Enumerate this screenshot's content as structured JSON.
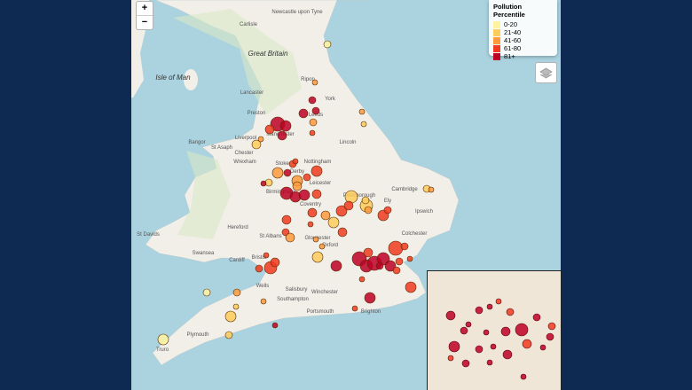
{
  "legend": {
    "title": "Pollution Percentile",
    "items": [
      {
        "label": "0-20",
        "color": "#fff3a0"
      },
      {
        "label": "21-40",
        "color": "#fecc5c"
      },
      {
        "label": "41-60",
        "color": "#fd9a3c"
      },
      {
        "label": "61-80",
        "color": "#f03b20"
      },
      {
        "label": "81+",
        "color": "#bd0026"
      }
    ]
  },
  "zoom": {
    "in": "+",
    "out": "−"
  },
  "places": [
    "Newcastle upon Tyne",
    "Carlisle",
    "Great Britain",
    "Isle of Man",
    "Ripon",
    "Lancaster",
    "York",
    "Preston",
    "Leeds",
    "Manchester",
    "Liverpool",
    "Bangor",
    "St Asaph",
    "Chester",
    "Wrexham",
    "Lincoln",
    "Stoke",
    "Nottingham",
    "Derby",
    "Birmingham",
    "Leicester",
    "Peterborough",
    "Coventry",
    "Ely",
    "Cambridge",
    "Ipswich",
    "Colchester",
    "Hereford",
    "St Albans",
    "Gloucester",
    "Oxford",
    "St Davids",
    "Swansea",
    "Cardiff",
    "Bristol",
    "Wells",
    "Salisbury",
    "Winchester",
    "Southampton",
    "Portsmouth",
    "Brighton",
    "Plymouth",
    "Truro"
  ]
}
